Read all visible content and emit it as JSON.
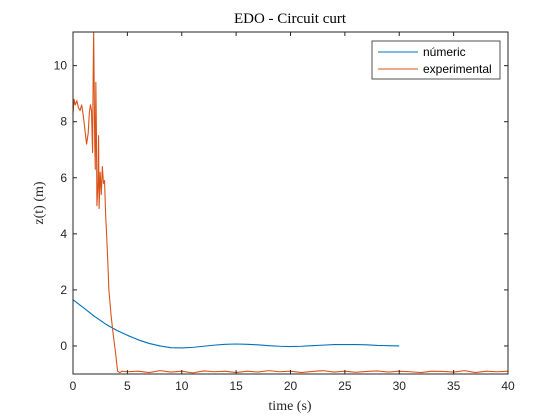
{
  "chart_data": {
    "type": "line",
    "title": "EDO - Circuit curt",
    "xlabel": "time (s)",
    "ylabel": "z(t) (m)",
    "xlim": [
      0,
      40
    ],
    "ylim": [
      -1,
      11.2
    ],
    "xticks": [
      0,
      5,
      10,
      15,
      20,
      25,
      30,
      35,
      40
    ],
    "yticks": [
      0,
      2,
      4,
      6,
      8,
      10
    ],
    "grid": false,
    "legend_position": "top-right",
    "series": [
      {
        "name": "númeric",
        "color": "#0072BD",
        "x": [
          0,
          1,
          2,
          3,
          4,
          5,
          6,
          7,
          8,
          9,
          10,
          11,
          12,
          13,
          14,
          15,
          16,
          17,
          18,
          19,
          20,
          21,
          22,
          23,
          24,
          25,
          26,
          27,
          28,
          29,
          30
        ],
        "y": [
          1.65,
          1.35,
          1.05,
          0.78,
          0.56,
          0.38,
          0.22,
          0.09,
          0.0,
          -0.06,
          -0.07,
          -0.05,
          -0.01,
          0.03,
          0.06,
          0.07,
          0.06,
          0.04,
          0.01,
          -0.01,
          -0.02,
          -0.01,
          0.01,
          0.03,
          0.05,
          0.05,
          0.05,
          0.04,
          0.02,
          0.01,
          0.0
        ]
      },
      {
        "name": "experimental",
        "color": "#D95319",
        "x": [
          0,
          0.1,
          0.2,
          0.35,
          0.5,
          0.65,
          0.8,
          0.95,
          1.1,
          1.25,
          1.4,
          1.5,
          1.6,
          1.7,
          1.8,
          1.85,
          1.9,
          2.0,
          2.05,
          2.1,
          2.15,
          2.2,
          2.3,
          2.35,
          2.4,
          2.5,
          2.6,
          2.7,
          2.8,
          2.9,
          3.0,
          3.1,
          3.2,
          3.3,
          3.5,
          3.7,
          3.9,
          4.1,
          4.3,
          4.5,
          5,
          6,
          7,
          8,
          9,
          10,
          11,
          12,
          13,
          14,
          15,
          16,
          17,
          18,
          19,
          20,
          21,
          22,
          23,
          24,
          25,
          26,
          27,
          28,
          29,
          30,
          31,
          32,
          33,
          34,
          35,
          36,
          37,
          38,
          39,
          40
        ],
        "y": [
          8.3,
          8.8,
          8.6,
          8.75,
          8.5,
          8.4,
          8.6,
          8.2,
          7.7,
          7.2,
          7.6,
          8.3,
          8.6,
          8.4,
          6.9,
          9.5,
          11.2,
          7.2,
          6.3,
          9.4,
          7.8,
          5.0,
          5.8,
          7.5,
          4.9,
          6.2,
          5.4,
          6.4,
          5.8,
          5.9,
          4.7,
          3.9,
          3.0,
          2.0,
          1.1,
          0.4,
          -0.2,
          -0.9,
          -0.95,
          -0.9,
          -0.92,
          -0.9,
          -0.95,
          -0.88,
          -0.93,
          -0.9,
          -0.96,
          -0.89,
          -0.92,
          -0.9,
          -0.95,
          -0.9,
          -0.93,
          -0.88,
          -0.92,
          -0.9,
          -0.95,
          -0.91,
          -0.88,
          -0.93,
          -0.9,
          -0.94,
          -0.91,
          -0.89,
          -0.93,
          -0.9,
          -0.92,
          -0.95,
          -0.9,
          -0.91,
          -0.93,
          -0.88,
          -0.95,
          -0.9,
          -0.92,
          -0.9
        ]
      }
    ]
  }
}
